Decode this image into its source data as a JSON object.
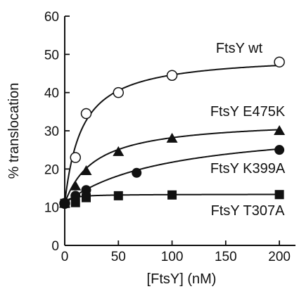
{
  "chart_data": {
    "type": "scatter",
    "title": "",
    "xlabel": "[FtsY] (nM)",
    "ylabel": "% translocation",
    "xlim": [
      0,
      215
    ],
    "ylim": [
      0,
      60
    ],
    "xticks": [
      0,
      50,
      100,
      150,
      200
    ],
    "yticks": [
      0,
      10,
      20,
      30,
      40,
      50,
      60
    ],
    "grid": false,
    "legend": "inline labels at right",
    "series": [
      {
        "name": "FtsY wt",
        "marker": "circle-open",
        "x": [
          0,
          10,
          20,
          50,
          100,
          200
        ],
        "y": [
          11,
          23,
          34.5,
          40,
          44.5,
          48
        ],
        "fit": {
          "y0": 11,
          "ymax": 39,
          "k": 16
        }
      },
      {
        "name": "FtsY E475K",
        "marker": "triangle-filled",
        "x": [
          0,
          10,
          20,
          50,
          100,
          200
        ],
        "y": [
          11,
          15.5,
          19.5,
          24.5,
          28,
          30
        ],
        "fit": {
          "y0": 11,
          "ymax": 22,
          "k": 28
        }
      },
      {
        "name": "FtsY K399A",
        "marker": "circle-filled",
        "x": [
          0,
          10,
          20,
          67,
          200
        ],
        "y": [
          11,
          13,
          14.5,
          19,
          25
        ],
        "fit": {
          "y0": 11,
          "ymax": 21,
          "k": 95
        }
      },
      {
        "name": "FtsY T307A",
        "marker": "square-filled",
        "x": [
          0,
          10,
          20,
          50,
          100,
          200
        ],
        "y": [
          11,
          11.2,
          12.5,
          13,
          13.2,
          13.3
        ],
        "fit": {
          "y0": 11,
          "ymax": 2.4,
          "k": 5
        }
      }
    ]
  }
}
